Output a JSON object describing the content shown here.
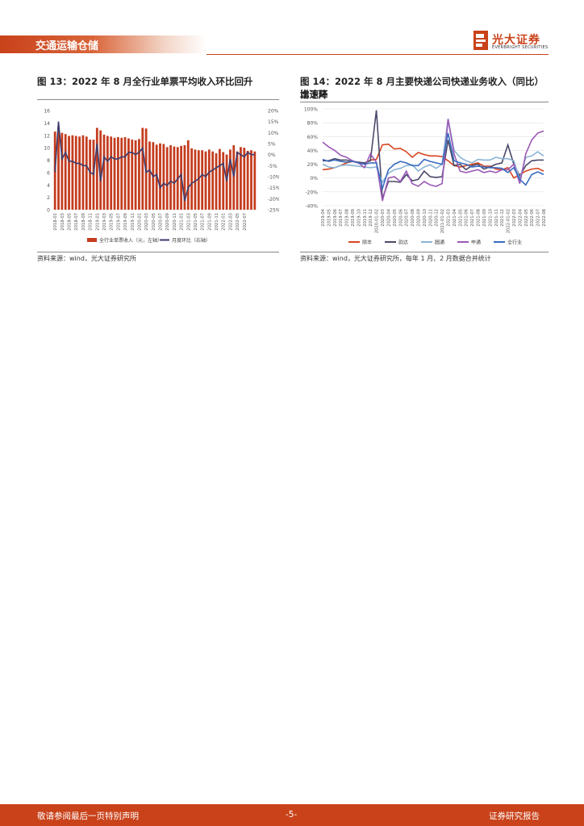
{
  "header": {
    "section": "交通运输仓储",
    "brand_cn": "光大证券",
    "brand_en": "EVERBRIGHT SECURITIES"
  },
  "fig13": {
    "title": "图 13：2022 年 8 月全行业单票平均收入环比回升",
    "source": "资料来源：wind，光大证券研究所"
  },
  "fig14": {
    "title_line1": "图 14：2022 年 8 月主要快递公司快递业务收入（同比）增速环",
    "title_line2": "比下降",
    "source": "资料来源：wind，光大证券研究所，每年 1 月、2 月数据合并统计"
  },
  "footer": {
    "left": "敬请参阅最后一页特别声明",
    "center": "-5-",
    "right": "证券研究报告"
  },
  "chart_data": [
    {
      "type": "bar",
      "title": "图 13：2022 年 8 月全行业单票平均收入环比回升",
      "ylim_left": [
        0,
        16
      ],
      "yticks_left": [
        "0",
        "2",
        "4",
        "6",
        "8",
        "10",
        "12",
        "14",
        "16"
      ],
      "ylim_right": [
        -25,
        20
      ],
      "yticks_right": [
        "-25%",
        "-20%",
        "-15%",
        "-10%",
        "-5%",
        "0%",
        "5%",
        "10%",
        "15%",
        "20%"
      ],
      "x_tick_labels": [
        "2018-01",
        "2018-03",
        "2018-05",
        "2018-07",
        "2018-09",
        "2018-11",
        "2019-01",
        "2019-03",
        "2019-05",
        "2019-07",
        "2019-09",
        "2019-11",
        "2020-01",
        "2020-03",
        "2020-05",
        "2020-07",
        "2020-09",
        "2020-11",
        "2021-01",
        "2021-03",
        "2021-05",
        "2021-07",
        "2021-09",
        "2021-11",
        "2022-01",
        "2022-03",
        "2022-05",
        "2022-07"
      ],
      "colors": {
        "bar": "#c43c1e",
        "line": "#3c3c6e"
      },
      "series": [
        {
          "name": "全行业单票收入（元，左轴）",
          "axis": "left",
          "values": [
            12.6,
            13.3,
            12.4,
            12.2,
            11.9,
            12.0,
            11.9,
            11.8,
            12.0,
            11.8,
            11.3,
            11.3,
            13.2,
            12.8,
            12.1,
            11.9,
            11.8,
            11.6,
            11.7,
            11.6,
            11.7,
            11.5,
            11.3,
            11.2,
            11.4,
            13.2,
            13.1,
            11.0,
            10.9,
            10.5,
            10.7,
            10.6,
            10.1,
            10.4,
            10.2,
            10.1,
            10.3,
            10.4,
            11.2,
            9.9,
            9.7,
            9.6,
            9.6,
            9.4,
            9.7,
            9.4,
            9.1,
            9.8,
            9.3,
            8.9,
            9.7,
            10.4,
            9.4,
            10.1,
            10.0,
            9.5,
            9.6,
            9.4
          ]
        },
        {
          "name": "月度环比（右轴）",
          "axis": "right",
          "values": [
            -8,
            15,
            -2,
            1,
            -3,
            -3,
            -4,
            -4,
            -5,
            -5,
            -8,
            -9,
            5,
            -12,
            -1,
            -3,
            -1,
            -2,
            -2,
            -1,
            -1,
            1,
            1,
            0,
            1,
            3,
            -8,
            -7,
            -10,
            -9,
            -15,
            -13,
            -14,
            -12,
            -13,
            -11,
            -9,
            -21,
            -15,
            -13,
            -12,
            -11,
            -9,
            -10,
            -8,
            -7,
            -6,
            -5,
            -4,
            -12,
            -2,
            -10,
            1,
            0,
            -1,
            1,
            0,
            0
          ]
        }
      ]
    },
    {
      "type": "line",
      "title": "图 14：2022 年 8 月主要快递公司快递业务收入（同比）增速环比下降",
      "ylim": [
        -40,
        100
      ],
      "yticks": [
        "-40%",
        "-20%",
        "0%",
        "20%",
        "40%",
        "60%",
        "80%",
        "100%"
      ],
      "x_tick_labels": [
        "2019-04",
        "2019-05",
        "2019-06",
        "2019-07",
        "2019-08",
        "2019-09",
        "2019-10",
        "2019-11",
        "2019-12",
        "2020-01-02",
        "2020-03",
        "2020-04",
        "2020-05",
        "2020-06",
        "2020-07",
        "2020-08",
        "2020-09",
        "2020-10",
        "2020-11",
        "2020-12",
        "2021-01-02",
        "2021-03",
        "2021-04",
        "2021-05",
        "2021-06",
        "2021-07",
        "2021-08",
        "2021-09",
        "2021-10",
        "2021-11",
        "2021-12",
        "2022-01-02",
        "2022-03",
        "2022-04",
        "2022-05",
        "2022-06",
        "2022-07",
        "2022-08"
      ],
      "series": [
        {
          "name": "顺丰",
          "color": "#d7441f",
          "values": [
            12,
            13,
            15,
            18,
            22,
            24,
            22,
            21,
            26,
            27,
            48,
            49,
            42,
            43,
            38,
            30,
            37,
            34,
            32,
            32,
            31,
            25,
            18,
            16,
            18,
            20,
            22,
            17,
            17,
            13,
            12,
            15,
            0,
            5,
            10,
            13,
            14,
            10
          ]
        },
        {
          "name": "韵达",
          "color": "#4a4a6a",
          "values": [
            25,
            25,
            28,
            26,
            26,
            24,
            23,
            22,
            25,
            98,
            -30,
            -5,
            -5,
            -6,
            5,
            -4,
            -2,
            10,
            2,
            1,
            2,
            55,
            18,
            20,
            12,
            18,
            20,
            13,
            16,
            20,
            22,
            48,
            20,
            3,
            18,
            25,
            26,
            26
          ]
        },
        {
          "name": "圆通",
          "color": "#8ab4d4",
          "values": [
            20,
            16,
            15,
            18,
            19,
            18,
            17,
            16,
            15,
            16,
            -6,
            7,
            12,
            14,
            18,
            19,
            10,
            16,
            19,
            14,
            20,
            86,
            40,
            30,
            25,
            22,
            27,
            26,
            26,
            30,
            28,
            28,
            25,
            -2,
            30,
            32,
            38,
            32
          ]
        },
        {
          "name": "申通",
          "color": "#9b59b6",
          "values": [
            52,
            45,
            40,
            33,
            30,
            25,
            22,
            15,
            35,
            23,
            -33,
            0,
            2,
            -5,
            10,
            -8,
            -12,
            -5,
            -10,
            -12,
            -8,
            85,
            35,
            10,
            8,
            10,
            12,
            8,
            10,
            8,
            12,
            12,
            20,
            -8,
            35,
            55,
            65,
            68
          ]
        },
        {
          "name": "全行业",
          "color": "#3a6cc0",
          "values": [
            27,
            24,
            26,
            24,
            23,
            24,
            22,
            20,
            22,
            22,
            -15,
            12,
            20,
            24,
            22,
            18,
            18,
            27,
            24,
            22,
            20,
            65,
            25,
            22,
            20,
            16,
            17,
            16,
            15,
            15,
            14,
            8,
            15,
            -2,
            -10,
            5,
            9,
            5
          ]
        }
      ]
    }
  ]
}
